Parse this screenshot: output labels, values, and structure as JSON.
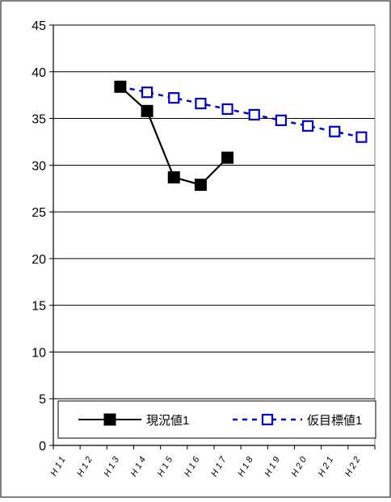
{
  "chart_data": {
    "type": "line",
    "categories": [
      "H11",
      "H12",
      "H13",
      "H14",
      "H15",
      "H16",
      "H17",
      "H18",
      "H19",
      "H20",
      "H21",
      "H22"
    ],
    "ylim": [
      0,
      45
    ],
    "yticks": [
      0,
      5,
      10,
      15,
      20,
      25,
      30,
      35,
      40,
      45
    ],
    "grid": true,
    "legend_position": "bottom",
    "series": [
      {
        "name": "現況値1",
        "color": "#000000",
        "line_style": "solid",
        "marker": "filled-square",
        "values": [
          null,
          null,
          38.4,
          35.8,
          28.7,
          27.9,
          30.8,
          null,
          null,
          null,
          null,
          null
        ]
      },
      {
        "name": "仮目標値1",
        "color": "#0000cc",
        "line_style": "dotted",
        "marker": "hollow-square",
        "values": [
          null,
          null,
          38.4,
          37.8,
          37.2,
          36.6,
          36.0,
          35.4,
          34.8,
          34.2,
          33.6,
          33.0
        ]
      }
    ]
  }
}
